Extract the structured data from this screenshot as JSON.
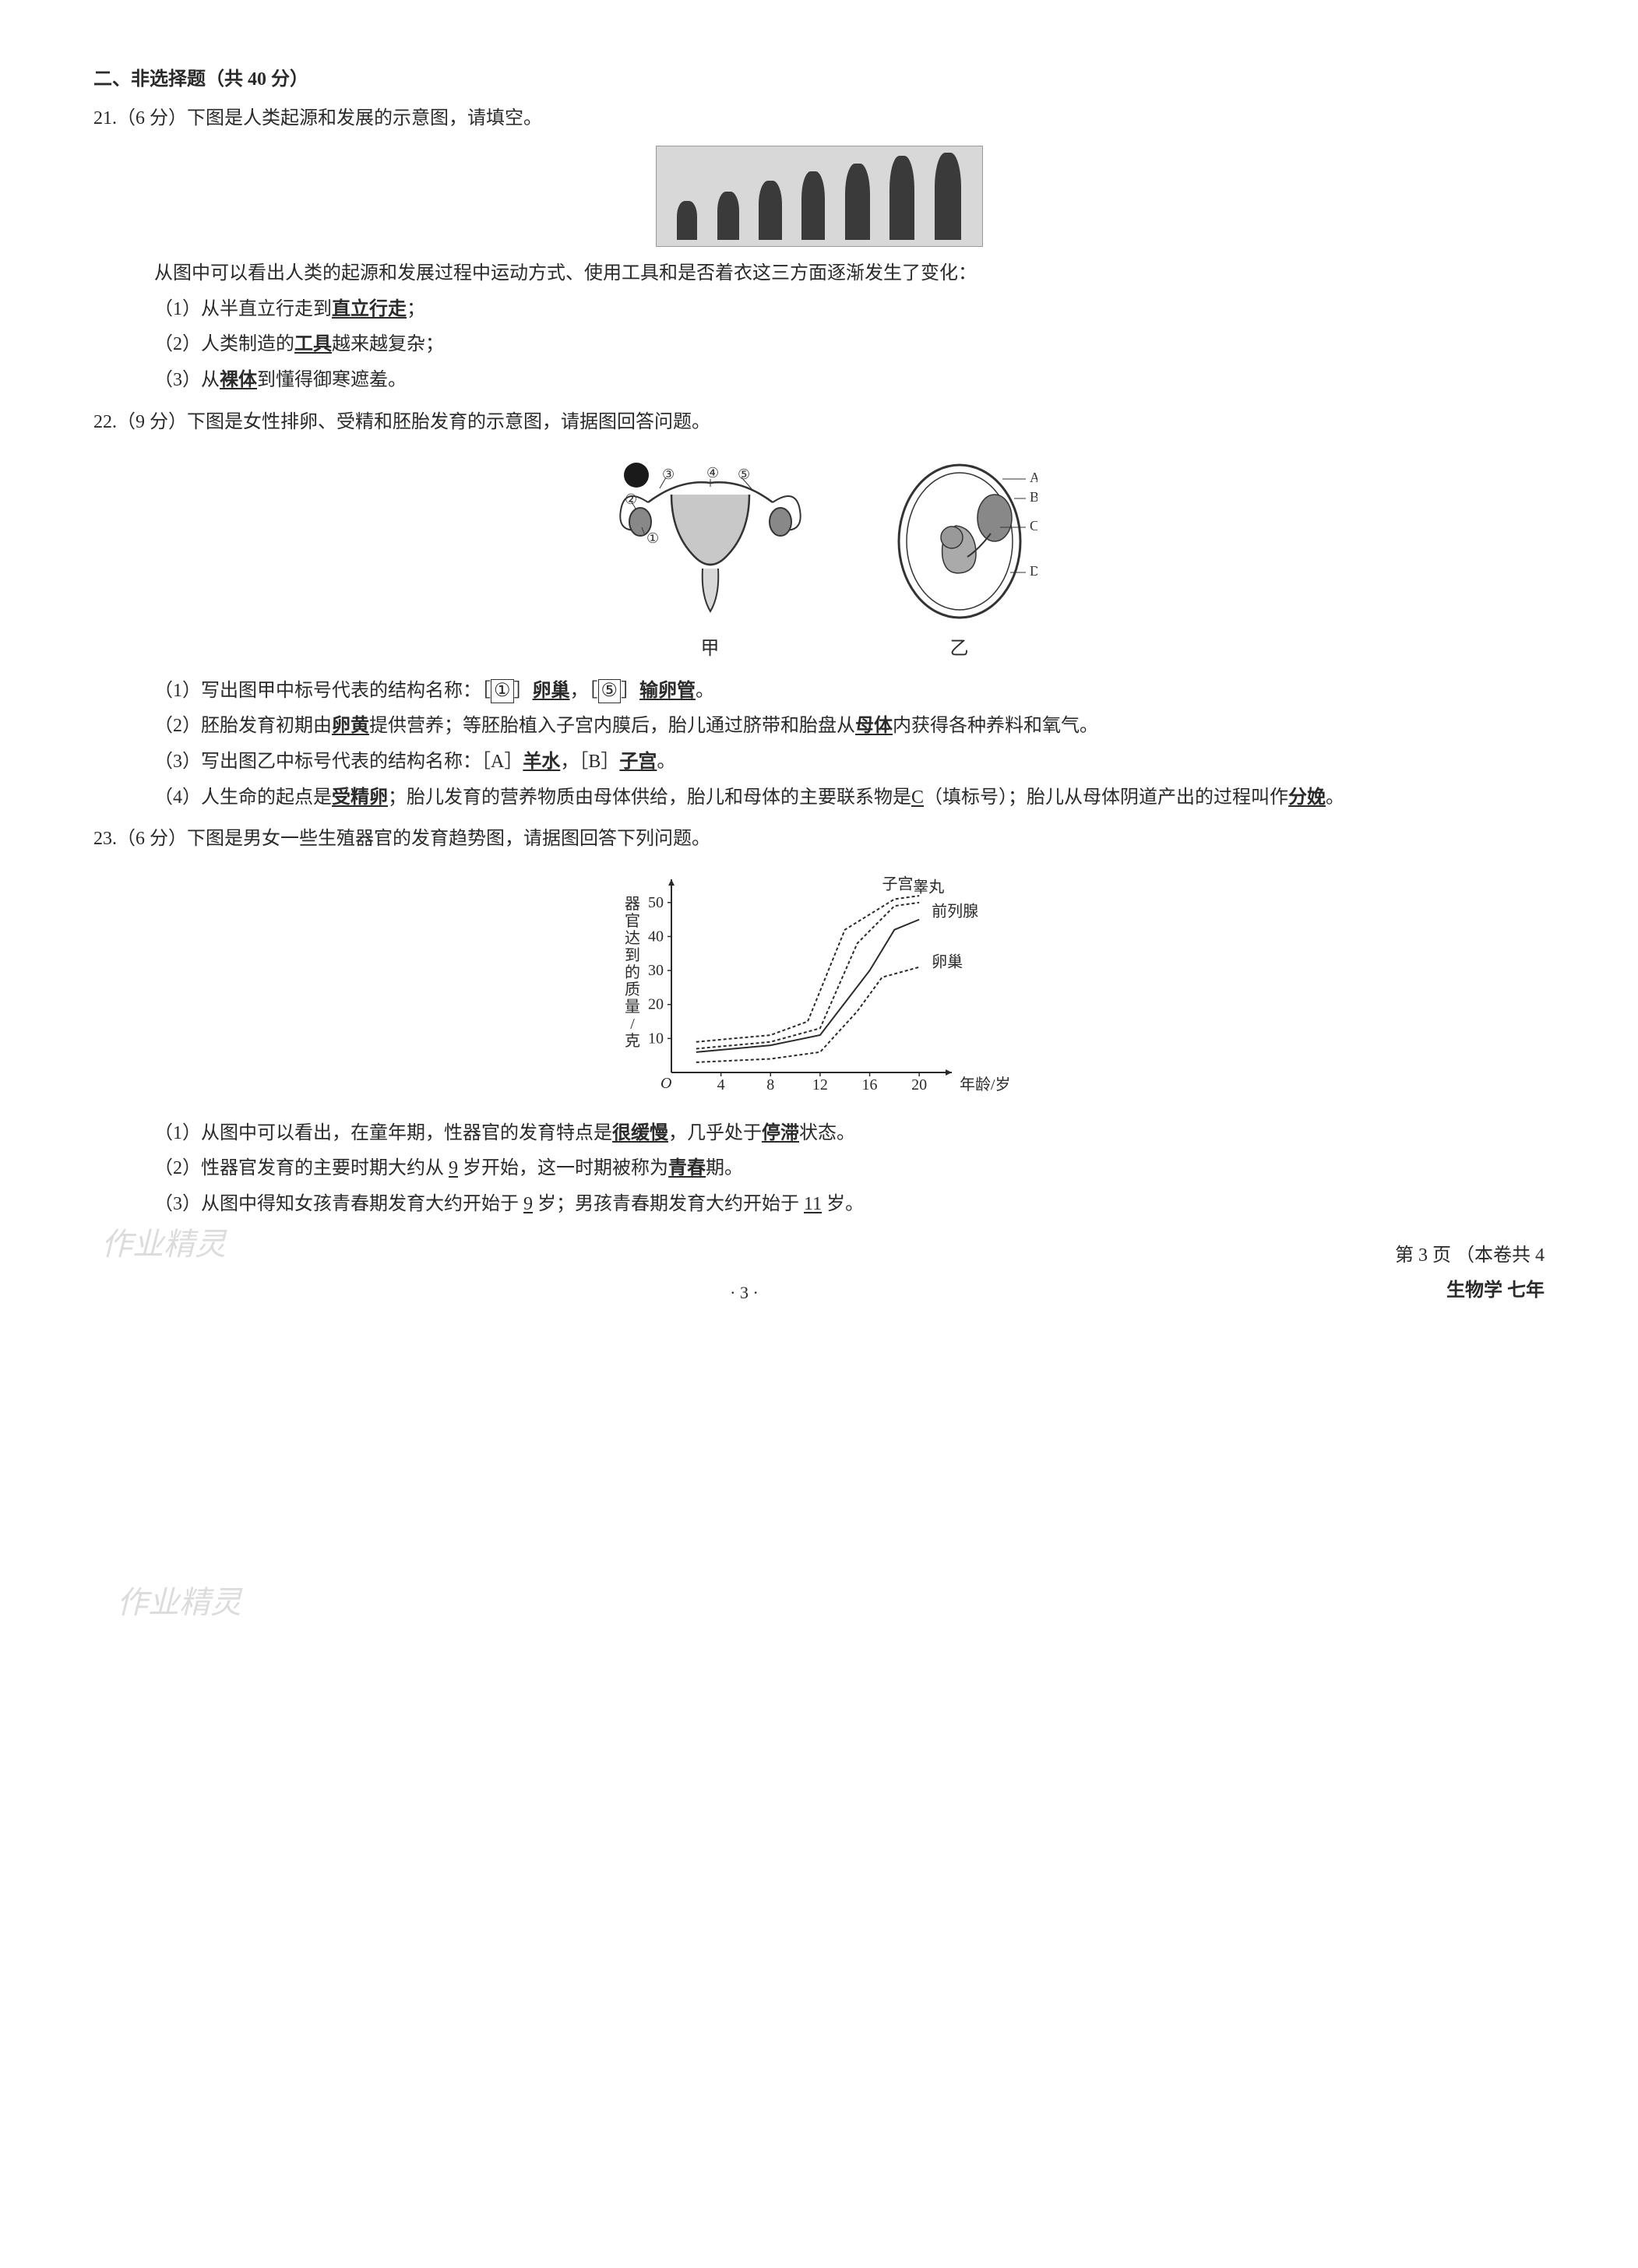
{
  "section": {
    "header": "二、非选择题（共 40 分）"
  },
  "q21": {
    "header": "21.（6 分）下图是人类起源和发展的示意图，请填空。",
    "intro": "从图中可以看出人类的起源和发展过程中运动方式、使用工具和是否着衣这三方面逐渐发生了变化：",
    "item1_pre": "（1）从半直立行走到",
    "item1_ans": "直立行走",
    "item1_post": "；",
    "item2_pre": "（2）人类制造的",
    "item2_ans": "工具",
    "item2_post": "越来越复杂；",
    "item3_pre": "（3）从",
    "item3_ans": "裸体",
    "item3_post": "到懂得御寒遮羞。",
    "evolution_figures": [
      {
        "w": 26,
        "h": 50
      },
      {
        "w": 28,
        "h": 62
      },
      {
        "w": 30,
        "h": 76
      },
      {
        "w": 30,
        "h": 88
      },
      {
        "w": 32,
        "h": 98
      },
      {
        "w": 32,
        "h": 108
      },
      {
        "w": 34,
        "h": 112
      }
    ]
  },
  "q22": {
    "header": "22.（9 分）下图是女性排卵、受精和胚胎发育的示意图，请据图回答问题。",
    "caption_a": "甲",
    "caption_b": "乙",
    "item1_pre": "（1）写出图甲中标号代表的结构名称：［",
    "item1_num1": "①",
    "item1_br1": "］",
    "item1_ans1": "卵巢",
    "item1_mid": "，［",
    "item1_num2": "⑤",
    "item1_br2": "］",
    "item1_ans2": "输卵管",
    "item1_post": "。",
    "item2_pre": "（2）胚胎发育初期由",
    "item2_ans1": "卵黄",
    "item2_mid": "提供营养；等胚胎植入子宫内膜后，胎儿通过脐带和胎盘从",
    "item2_ans2": "母体",
    "item2_post": "内获得各种养料和氧气。",
    "item3_pre": "（3）写出图乙中标号代表的结构名称：［A］",
    "item3_ans1": "羊水",
    "item3_mid": "，［B］",
    "item3_ans2": "子宫",
    "item3_post": "。",
    "item4_pre": "（4）人生命的起点是",
    "item4_ans1": "受精卵",
    "item4_mid1": "；胎儿发育的营养物质由母体供给，胎儿和母体的主要联系物是",
    "item4_ans2": "C",
    "item4_mid2": "（填标号）；胎儿从母体阴道产出的过程叫作",
    "item4_ans3": "分娩",
    "item4_post": "。",
    "labels_a": [
      "①",
      "②",
      "③",
      "④",
      "⑤"
    ],
    "labels_b": [
      "A",
      "B",
      "C",
      "D"
    ]
  },
  "q23": {
    "header": "23.（6 分）下图是男女一些生殖器官的发育趋势图，请据图回答下列问题。",
    "chart": {
      "type": "line",
      "ylabel": "器官达到的质量/克",
      "xlabel": "年龄/岁",
      "xlim": [
        0,
        22
      ],
      "ylim": [
        0,
        55
      ],
      "xticks": [
        4,
        8,
        12,
        16,
        20
      ],
      "yticks": [
        10,
        20,
        30,
        40,
        50
      ],
      "axis_color": "#2a2a2a",
      "line_color": "#2a2a2a",
      "background": "#ffffff",
      "font_size": 20,
      "series": [
        {
          "name": "子宫",
          "dash": "4,3",
          "points": [
            [
              2,
              9
            ],
            [
              8,
              11
            ],
            [
              11,
              15
            ],
            [
              14,
              42
            ],
            [
              18,
              51
            ],
            [
              20,
              52
            ]
          ]
        },
        {
          "name": "睾丸",
          "dash": "4,3",
          "points": [
            [
              2,
              7
            ],
            [
              8,
              9
            ],
            [
              12,
              13
            ],
            [
              15,
              38
            ],
            [
              18,
              49
            ],
            [
              20,
              50
            ]
          ]
        },
        {
          "name": "前列腺",
          "dash": "none",
          "points": [
            [
              2,
              6
            ],
            [
              8,
              8
            ],
            [
              12,
              11
            ],
            [
              16,
              30
            ],
            [
              18,
              42
            ],
            [
              20,
              45
            ]
          ]
        },
        {
          "name": "卵巢",
          "dash": "4,3",
          "points": [
            [
              2,
              3
            ],
            [
              8,
              4
            ],
            [
              12,
              6
            ],
            [
              15,
              18
            ],
            [
              17,
              28
            ],
            [
              20,
              31
            ]
          ]
        }
      ],
      "legend_labels": [
        "子宫",
        "睾丸",
        "前列腺",
        "卵巢"
      ]
    },
    "item1_pre": "（1）从图中可以看出，在童年期，性器官的发育特点是",
    "item1_ans1": "很缓慢",
    "item1_mid": "，几乎处于",
    "item1_ans2": "停滞",
    "item1_post": "状态。",
    "item2_pre": "（2）性器官发育的主要时期大约从 ",
    "item2_ans1": "9",
    "item2_mid": " 岁开始，这一时期被称为",
    "item2_ans2": "青春",
    "item2_post": "期。",
    "item3_pre": "（3）从图中得知女孩青春期发育大约开始于 ",
    "item3_ans1": "9",
    "item3_mid": " 岁；男孩青春期发育大约开始于 ",
    "item3_ans2": "11",
    "item3_post": " 岁。"
  },
  "footer": {
    "page_right1": "第 3 页   （本卷共 4",
    "page_right2": "生物学   七年",
    "page_center": "· 3 ·"
  },
  "watermarks": {
    "wm2": "作业精灵",
    "wm3": "作业精灵"
  }
}
